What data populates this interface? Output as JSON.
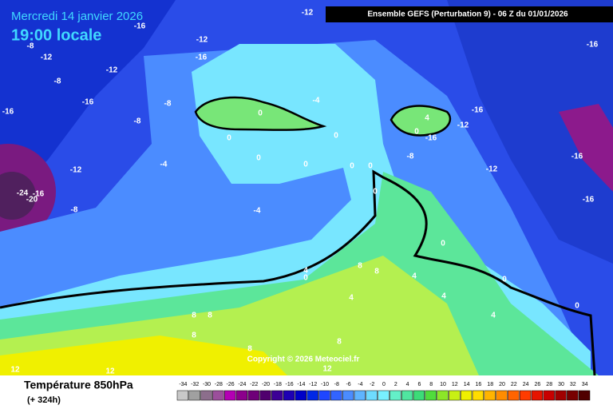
{
  "header": {
    "date": "Mercredi 14 janvier 2026",
    "time": "19:00 locale",
    "model": "Ensemble GEFS  (Perturbation 9)  -  06 Z du 01/01/2026",
    "copyright": "Copyright © 2026 Meteociel.fr"
  },
  "footer": {
    "title": "Température 850hPa",
    "lead": "(+ 324h)"
  },
  "scale": {
    "values": [
      -34,
      -32,
      -30,
      -28,
      -26,
      -24,
      -22,
      -20,
      -18,
      -16,
      -14,
      -12,
      -10,
      -8,
      -6,
      -4,
      -2,
      0,
      2,
      4,
      6,
      8,
      10,
      12,
      14,
      16,
      18,
      20,
      22,
      24,
      26,
      28,
      30,
      32,
      34
    ],
    "colors": [
      "#c8c8c8",
      "#a0a0a0",
      "#8c6e8c",
      "#9b4f9b",
      "#b400b4",
      "#8c008c",
      "#6e0078",
      "#50006e",
      "#3c0096",
      "#1e00b4",
      "#0000c8",
      "#0028e6",
      "#1e46ff",
      "#3264ff",
      "#4b8cff",
      "#5fb4ff",
      "#6edcff",
      "#78f0ff",
      "#64f0c8",
      "#50e6a0",
      "#3cdc78",
      "#50dc3c",
      "#8ce628",
      "#c8f014",
      "#f0f000",
      "#ffdc00",
      "#ffb400",
      "#ff8c00",
      "#ff6400",
      "#ff3c00",
      "#e61400",
      "#c80000",
      "#a00000",
      "#780000",
      "#500000"
    ]
  },
  "isotherm_labels": [
    -12,
    -16,
    -12,
    -16,
    -12,
    -8,
    -12,
    -8,
    -8,
    -16,
    -16,
    -8,
    -4,
    0,
    0,
    0,
    0,
    0,
    0,
    0,
    0,
    -4,
    -12,
    -8,
    -4,
    -16,
    -12,
    -16,
    4,
    0,
    -8,
    -12,
    -16,
    -16,
    -16,
    0,
    4,
    0,
    8,
    8,
    4,
    4,
    4,
    4,
    0,
    0,
    8,
    8,
    8,
    8,
    8,
    12,
    12,
    12,
    -20,
    -24,
    -16
  ]
}
